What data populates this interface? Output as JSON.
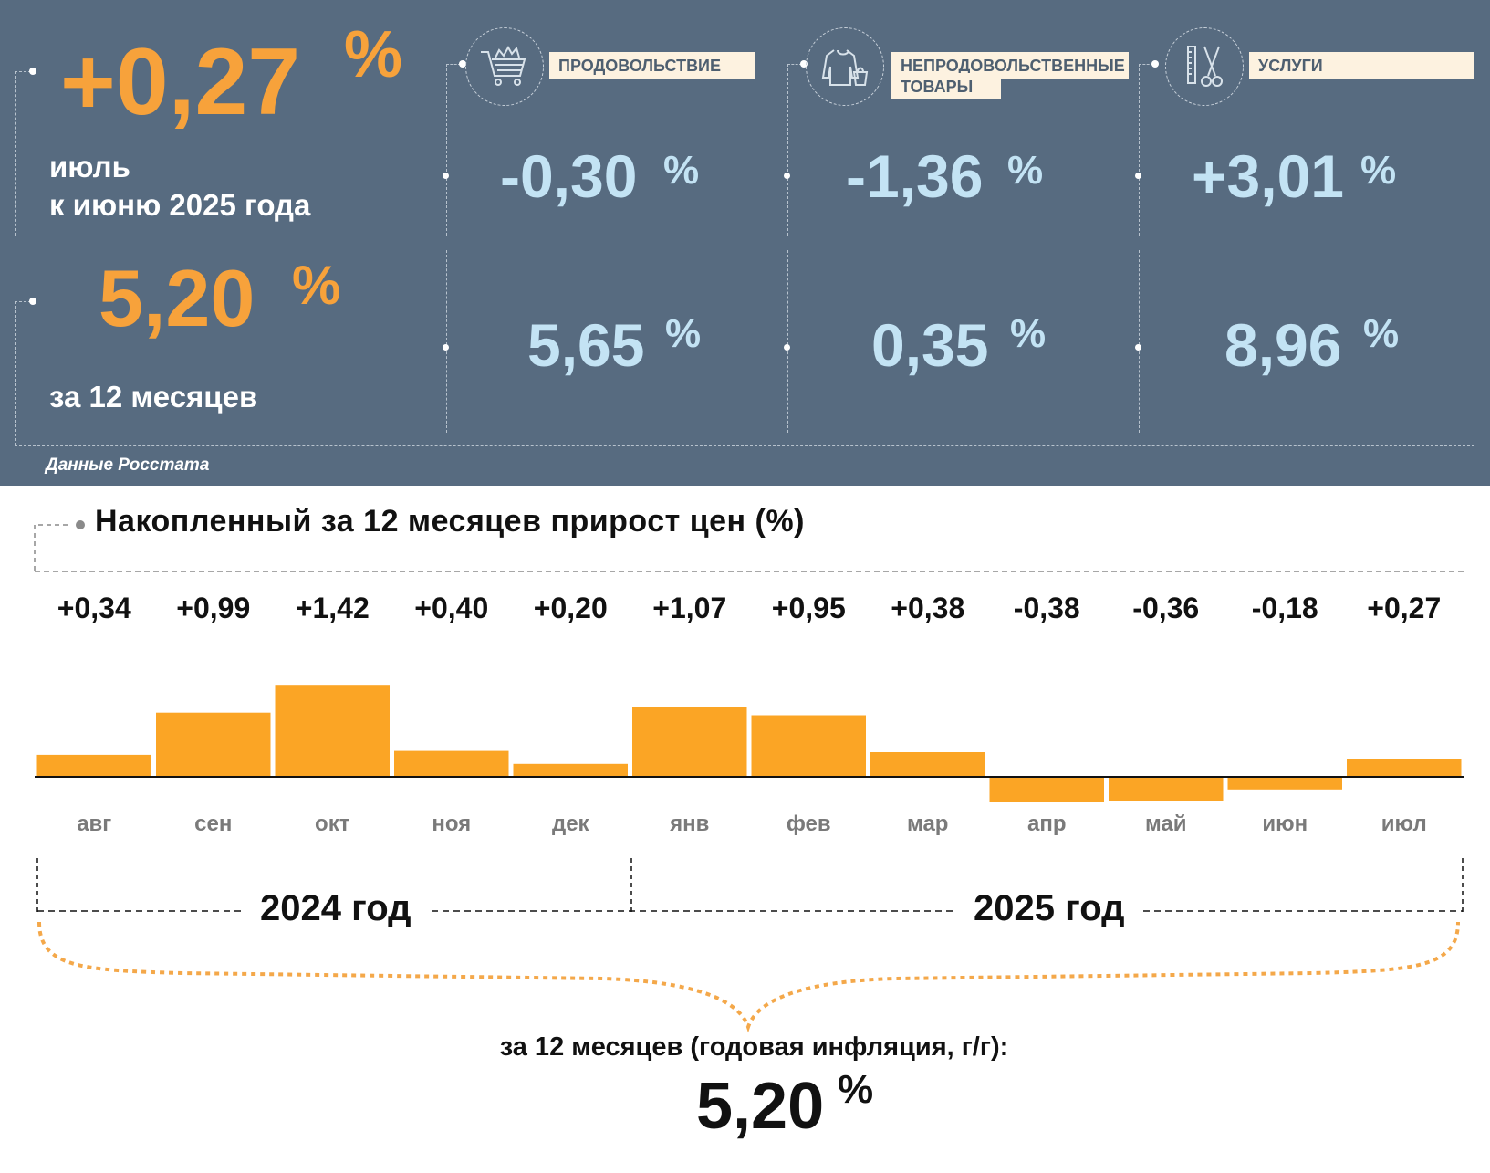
{
  "panel": {
    "monthly_value": "+0,27",
    "monthly_pct": "%",
    "monthly_caption_line1": "июль",
    "monthly_caption_line2": "к июню 2025 года",
    "annual_value": "5,20",
    "annual_pct": "%",
    "annual_caption": "за 12 месяцев",
    "source": "Данные Росстата",
    "categories": [
      {
        "label": "ПРОДОВОЛЬСТВИЕ",
        "icon": "shopping-cart-icon",
        "monthly": "-0,30",
        "annual": "5,65",
        "pct": "%"
      },
      {
        "label_line1": "НЕПРОДОВОЛЬСТВЕННЫЕ",
        "label_line2": "ТОВАРЫ",
        "icon": "clothes-icon",
        "monthly": "-1,36",
        "annual": "0,35",
        "pct": "%"
      },
      {
        "label": "УСЛУГИ",
        "icon": "scissors-comb-icon",
        "monthly": "+3,01",
        "annual": "8,96",
        "pct": "%"
      }
    ],
    "colors": {
      "panel_bg": "#576b80",
      "orange": "#f7a23b",
      "light_blue": "#c3e3f4",
      "label_bg": "#fdf2e0"
    }
  },
  "chart_data": {
    "type": "bar",
    "title": "Накопленный за 12 месяцев прирост цен (%)",
    "categories": [
      "авг",
      "сен",
      "окт",
      "ноя",
      "дек",
      "янв",
      "фев",
      "мар",
      "апр",
      "май",
      "июн",
      "июл"
    ],
    "values": [
      0.34,
      0.99,
      1.42,
      0.4,
      0.2,
      1.07,
      0.95,
      0.38,
      -0.38,
      -0.36,
      -0.18,
      0.27
    ],
    "value_labels": [
      "+0,34",
      "+0,99",
      "+1,42",
      "+0,40",
      "+0,20",
      "+1,07",
      "+0,95",
      "+0,38",
      "-0,38",
      "-0,36",
      "-0,18",
      "+0,27"
    ],
    "years": [
      "2024 год",
      "2025 год"
    ],
    "summary_caption": "за 12 месяцев (годовая инфляция, г/г):",
    "summary_value": "5,20",
    "summary_pct": "%",
    "bar_color": "#fba525"
  }
}
